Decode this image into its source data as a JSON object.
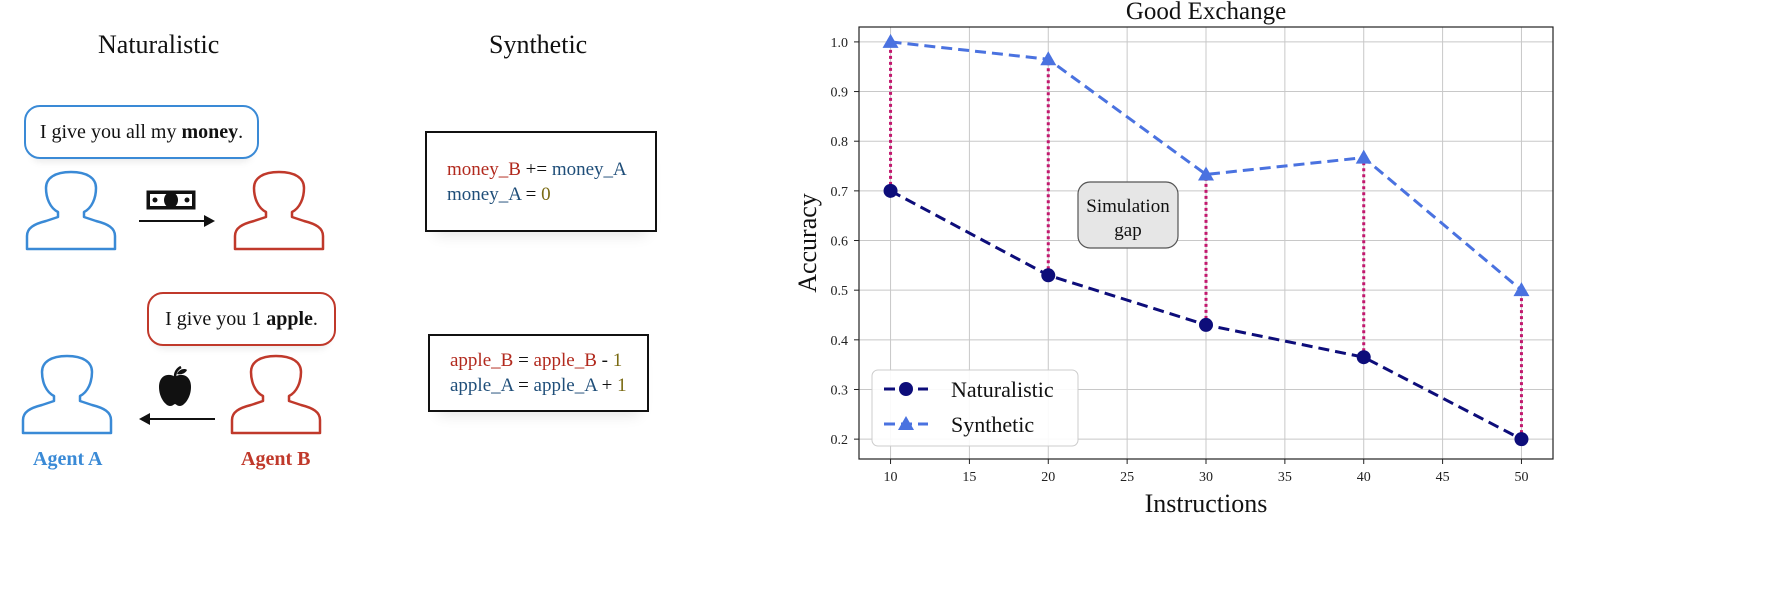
{
  "left_panel": {
    "naturalistic_heading": "Naturalistic",
    "synthetic_heading": "Synthetic",
    "exchange1": {
      "bubble_pre": "I give you all my ",
      "bubble_bold": "money",
      "bubble_post": ".",
      "code_line1": {
        "lhs": "money_B",
        "op": " += ",
        "rhs": "money_A"
      },
      "code_line2": {
        "lhs": "money_A",
        "op": " = ",
        "rhs": "0"
      }
    },
    "exchange2": {
      "bubble_pre": "I give you 1 ",
      "bubble_bold": "apple",
      "bubble_post": ".",
      "code_line1": {
        "lhs": "apple_B",
        "op": " = ",
        "mid": "apple_B",
        "op2": " - ",
        "num": "1"
      },
      "code_line2": {
        "lhs": "apple_A",
        "op": " = ",
        "mid": "apple_A",
        "op2": " + ",
        "num": "1"
      }
    },
    "agent_a_label": "Agent A",
    "agent_b_label": "Agent B",
    "colors": {
      "agent_a": "#3a8ad6",
      "agent_b": "#c0392b"
    }
  },
  "chart_data": {
    "type": "line",
    "title": "Good Exchange",
    "xlabel": "Instructions",
    "ylabel": "Accuracy",
    "x": [
      10,
      20,
      30,
      40,
      50
    ],
    "xlim": [
      8,
      52
    ],
    "ylim": [
      0.16,
      1.03
    ],
    "xticks": [
      10,
      15,
      20,
      25,
      30,
      35,
      40,
      45,
      50
    ],
    "yticks": [
      0.2,
      0.3,
      0.4,
      0.5,
      0.6,
      0.7,
      0.8,
      0.9,
      1.0
    ],
    "grid": true,
    "legend_position": "bottom-left",
    "series": [
      {
        "name": "Naturalistic",
        "values": [
          0.7,
          0.53,
          0.43,
          0.365,
          0.2
        ],
        "color": "#0d0d7a",
        "marker": "circle"
      },
      {
        "name": "Synthetic",
        "values": [
          1.0,
          0.965,
          0.733,
          0.767,
          0.5
        ],
        "color": "#4a72e0",
        "marker": "triangle"
      }
    ],
    "gap_line_color": "#c2186e",
    "annotation": {
      "line1": "Simulation",
      "line2": "gap"
    }
  }
}
